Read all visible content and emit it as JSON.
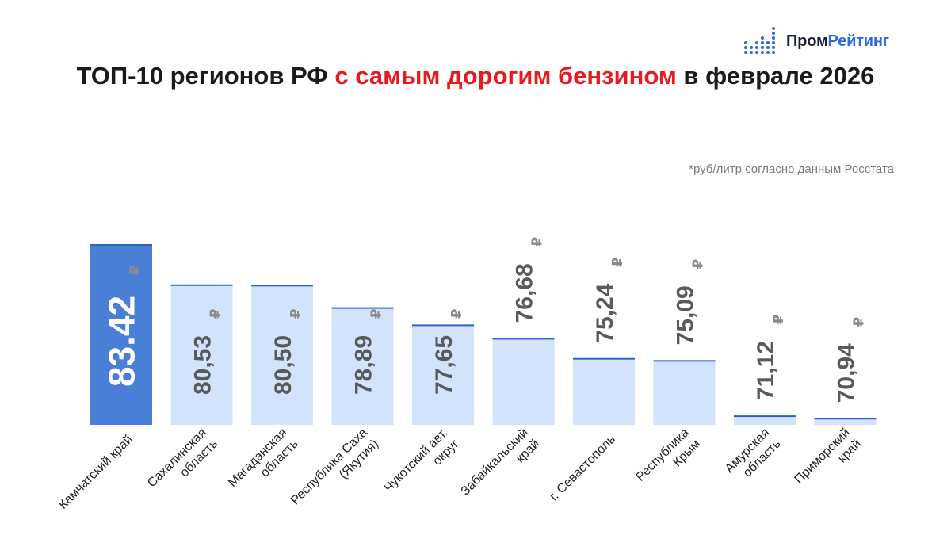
{
  "logo": {
    "part1": "Пром",
    "part2": "Рейтинг"
  },
  "title": {
    "part1": "ТОП-10 регионов РФ ",
    "highlight": "с самым дорогим бензином",
    "part2": " в феврале 2026"
  },
  "note": "*руб/литр согласно данным Росстата",
  "colors": {
    "highlight_bar": "#4a7fd8",
    "regular_bar": "#d3e3fb",
    "bar_top_line": "#2f62c8",
    "title_accent": "#e8191f",
    "value_text": "#5a5a5a",
    "currency_text": "#8a8a8a"
  },
  "chart_data": {
    "type": "bar",
    "title": "ТОП-10 регионов РФ с самым дорогим бензином в феврале 2026",
    "unit_note": "*руб/литр согласно данным Росстата",
    "currency": "₽",
    "categories": [
      [
        "Камчатский край"
      ],
      [
        "Сахалинская",
        "область"
      ],
      [
        "Магаданская",
        "область"
      ],
      [
        "Республика Саха",
        "(Якутия)"
      ],
      [
        "Чукотский авт.",
        "округ"
      ],
      [
        "Забайкальский",
        "край"
      ],
      [
        "г. Севастополь"
      ],
      [
        "Республика",
        "Крым"
      ],
      [
        "Амурская",
        "область"
      ],
      [
        "Приморский",
        "край"
      ]
    ],
    "values": [
      83.42,
      80.53,
      80.5,
      78.89,
      77.65,
      76.68,
      75.24,
      75.09,
      71.12,
      70.94
    ],
    "value_labels": [
      "83.42",
      "80,53",
      "80,50",
      "78,89",
      "77,65",
      "76,68",
      "75,24",
      "75,09",
      "71,12",
      "70,94"
    ],
    "highlight_index": 0,
    "ylim": [
      70.5,
      83.42
    ],
    "xlabel": "",
    "ylabel": "",
    "grid": false,
    "legend": false
  }
}
